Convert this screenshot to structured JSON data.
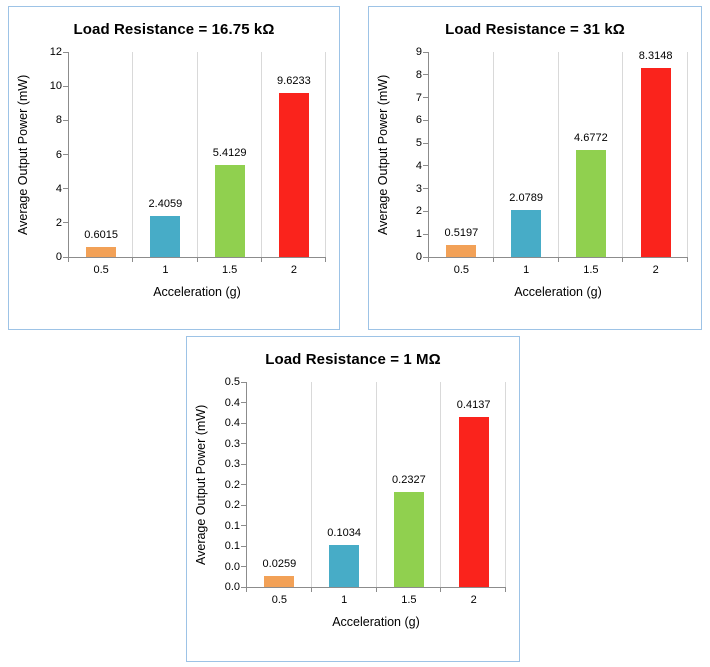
{
  "colors": {
    "card_border": "#9DC3E6",
    "axis": "#8C8C8C",
    "gridline": "#D9D9D9",
    "text": "#000000",
    "background": "#FFFFFF"
  },
  "chart_data": [
    {
      "type": "bar",
      "title": "Load Resistance = 16.75 kΩ",
      "xlabel": "Acceleration (g)",
      "ylabel": "Average Output Power (mW)",
      "categories": [
        "0.5",
        "1",
        "1.5",
        "2"
      ],
      "values": [
        0.6015,
        2.4059,
        5.4129,
        9.6233
      ],
      "value_labels": [
        "0.6015",
        "2.4059",
        "5.4129",
        "9.6233"
      ],
      "bar_colors": [
        "#F2A157",
        "#47ACC7",
        "#90D04F",
        "#FA231C"
      ],
      "ylim": [
        0,
        12
      ],
      "yticks": [
        0,
        2,
        4,
        6,
        8,
        10,
        12
      ],
      "ytick_labels": [
        "0",
        "2",
        "4",
        "6",
        "8",
        "10",
        "12"
      ],
      "legend": "none",
      "grid": "vertical-category-lines"
    },
    {
      "type": "bar",
      "title": "Load Resistance = 31 kΩ",
      "xlabel": "Acceleration (g)",
      "ylabel": "Average Output Power (mW)",
      "categories": [
        "0.5",
        "1",
        "1.5",
        "2"
      ],
      "values": [
        0.5197,
        2.0789,
        4.6772,
        8.3148
      ],
      "value_labels": [
        "0.5197",
        "2.0789",
        "4.6772",
        "8.3148"
      ],
      "bar_colors": [
        "#F2A157",
        "#47ACC7",
        "#90D04F",
        "#FA231C"
      ],
      "ylim": [
        0,
        9
      ],
      "yticks": [
        0,
        1,
        2,
        3,
        4,
        5,
        6,
        7,
        8,
        9
      ],
      "ytick_labels": [
        "0",
        "1",
        "2",
        "3",
        "4",
        "5",
        "6",
        "7",
        "8",
        "9"
      ],
      "legend": "none",
      "grid": "vertical-category-lines"
    },
    {
      "type": "bar",
      "title": "Load Resistance = 1 MΩ",
      "xlabel": "Acceleration (g)",
      "ylabel": "Average Output Power (mW)",
      "categories": [
        "0.5",
        "1",
        "1.5",
        "2"
      ],
      "values": [
        0.0259,
        0.1034,
        0.2327,
        0.4137
      ],
      "value_labels": [
        "0.0259",
        "0.1034",
        "0.2327",
        "0.4137"
      ],
      "bar_colors": [
        "#F2A157",
        "#47ACC7",
        "#90D04F",
        "#FA231C"
      ],
      "ylim": [
        0,
        0.5
      ],
      "yticks": [
        0,
        0.05,
        0.1,
        0.15,
        0.2,
        0.25,
        0.3,
        0.35,
        0.4,
        0.45,
        0.5
      ],
      "ytick_labels": [
        "0.0",
        "0.0",
        "0.1",
        "0.1",
        "0.2",
        "0.2",
        "0.3",
        "0.3",
        "0.4",
        "0.4",
        "0.5"
      ],
      "legend": "none",
      "grid": "vertical-category-lines"
    }
  ]
}
